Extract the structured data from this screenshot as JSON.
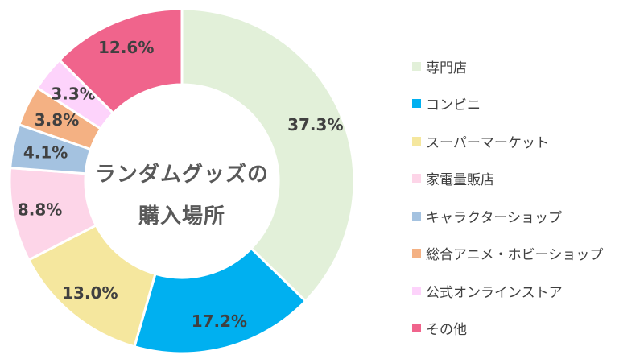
{
  "chart_data": {
    "type": "donut",
    "center_title": [
      "ランダムグッズの",
      "購入場所"
    ],
    "start": "top",
    "direction": "clockwise",
    "legend_position": "right",
    "slices": [
      {
        "label": "専門店",
        "value": 37.3,
        "display": "37.3%",
        "color": "#e2f0d9"
      },
      {
        "label": "コンビニ",
        "value": 17.2,
        "display": "17.2%",
        "color": "#00b0f0"
      },
      {
        "label": "スーパーマーケット",
        "value": 13.0,
        "display": "13.0%",
        "color": "#f5e79e"
      },
      {
        "label": "家電量販店",
        "value": 8.8,
        "display": "8.8%",
        "color": "#fdd5e8"
      },
      {
        "label": "キャラクターショップ",
        "value": 4.1,
        "display": "4.1%",
        "color": "#a4c2e0"
      },
      {
        "label": "総合アニメ・ホビーショップ",
        "value": 3.8,
        "display": "3.8%",
        "color": "#f4b183"
      },
      {
        "label": "公式オンラインストア",
        "value": 3.3,
        "display": "3.3%",
        "color": "#fdd3fb"
      },
      {
        "label": "その他",
        "value": 12.6,
        "display": "12.6%",
        "color": "#f0648c"
      }
    ]
  }
}
